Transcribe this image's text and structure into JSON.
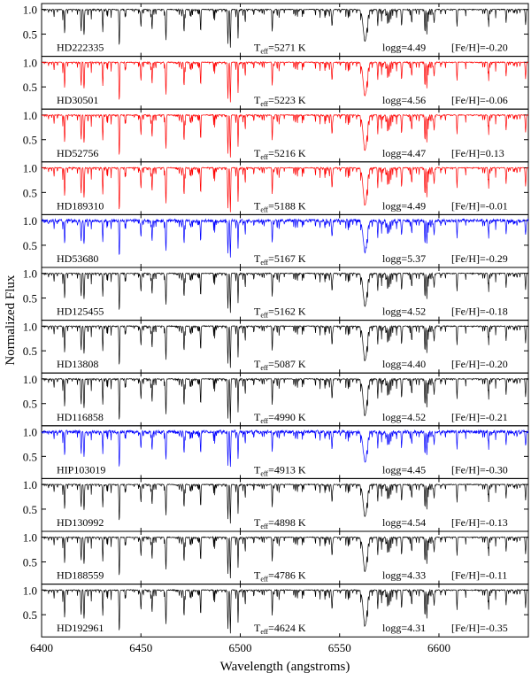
{
  "chart_data": {
    "type": "line",
    "xlabel": "Wavelength (angstroms)",
    "ylabel": "Normalized Flux",
    "xlim": [
      6400,
      6645
    ],
    "ylim": [
      0.05,
      1.12
    ],
    "x_ticks": [
      6400,
      6450,
      6500,
      6550,
      6600
    ],
    "y_ticks": [
      1.0,
      0.5
    ],
    "y_tick_labels": [
      "1.0",
      "0.5"
    ],
    "strong_lines": [
      {
        "wavelength": 6411.6,
        "depth": 0.55
      },
      {
        "wavelength": 6419.9,
        "depth": 0.5
      },
      {
        "wavelength": 6421.4,
        "depth": 0.55
      },
      {
        "wavelength": 6430.8,
        "depth": 0.5
      },
      {
        "wavelength": 6439.1,
        "depth": 0.85
      },
      {
        "wavelength": 6450.0,
        "depth": 0.4
      },
      {
        "wavelength": 6455.6,
        "depth": 0.45
      },
      {
        "wavelength": 6462.6,
        "depth": 0.7
      },
      {
        "wavelength": 6471.7,
        "depth": 0.5
      },
      {
        "wavelength": 6480.0,
        "depth": 0.35
      },
      {
        "wavelength": 6493.8,
        "depth": 0.75
      },
      {
        "wavelength": 6495.0,
        "depth": 0.85
      },
      {
        "wavelength": 6498.9,
        "depth": 0.5
      },
      {
        "wavelength": 6516.1,
        "depth": 0.45
      },
      {
        "wavelength": 6546.2,
        "depth": 0.4
      },
      {
        "wavelength": 6562.8,
        "depth": 0.7
      },
      {
        "wavelength": 6569.2,
        "depth": 0.35
      },
      {
        "wavelength": 6574.2,
        "depth": 0.35
      },
      {
        "wavelength": 6575.0,
        "depth": 0.3
      },
      {
        "wavelength": 6581.2,
        "depth": 0.35
      },
      {
        "wavelength": 6586.3,
        "depth": 0.3
      },
      {
        "wavelength": 6592.9,
        "depth": 0.45
      },
      {
        "wavelength": 6593.9,
        "depth": 0.55
      },
      {
        "wavelength": 6597.6,
        "depth": 0.3
      },
      {
        "wavelength": 6609.1,
        "depth": 0.35
      },
      {
        "wavelength": 6625.0,
        "depth": 0.25
      },
      {
        "wavelength": 6633.8,
        "depth": 0.3
      },
      {
        "wavelength": 6643.6,
        "depth": 0.35
      }
    ],
    "series": [
      {
        "name": "HD222335",
        "teff": "5271",
        "logg": "logg=4.49",
        "feh": "[Fe/H]=-0.20",
        "color": "#000000"
      },
      {
        "name": "HD30501",
        "teff": "5223",
        "logg": "logg=4.56",
        "feh": "[Fe/H]=-0.06",
        "color": "#ff0000"
      },
      {
        "name": "HD52756",
        "teff": "5216",
        "logg": "logg=4.47",
        "feh": "[Fe/H]=0.13",
        "color": "#ff0000"
      },
      {
        "name": "HD189310",
        "teff": "5188",
        "logg": "logg=4.49",
        "feh": "[Fe/H]=-0.01",
        "color": "#ff0000"
      },
      {
        "name": "HD53680",
        "teff": "5167",
        "logg": "logg=5.37",
        "feh": "[Fe/H]=-0.29",
        "color": "#0000ff"
      },
      {
        "name": "HD125455",
        "teff": "5162",
        "logg": "logg=4.52",
        "feh": "[Fe/H]=-0.18",
        "color": "#000000"
      },
      {
        "name": "HD13808",
        "teff": "5087",
        "logg": "logg=4.40",
        "feh": "[Fe/H]=-0.20",
        "color": "#000000"
      },
      {
        "name": "HD116858",
        "teff": "4990",
        "logg": "logg=4.52",
        "feh": "[Fe/H]=-0.21",
        "color": "#000000"
      },
      {
        "name": "HIP103019",
        "teff": "4913",
        "logg": "logg=4.45",
        "feh": "[Fe/H]=-0.30",
        "color": "#0000ff"
      },
      {
        "name": "HD130992",
        "teff": "4898",
        "logg": "logg=4.54",
        "feh": "[Fe/H]=-0.13",
        "color": "#000000"
      },
      {
        "name": "HD188559",
        "teff": "4786",
        "logg": "logg=4.33",
        "feh": "[Fe/H]=-0.11",
        "color": "#000000"
      },
      {
        "name": "HD192961",
        "teff": "4624",
        "logg": "logg=4.31",
        "feh": "[Fe/H]=-0.35",
        "color": "#000000"
      }
    ]
  }
}
